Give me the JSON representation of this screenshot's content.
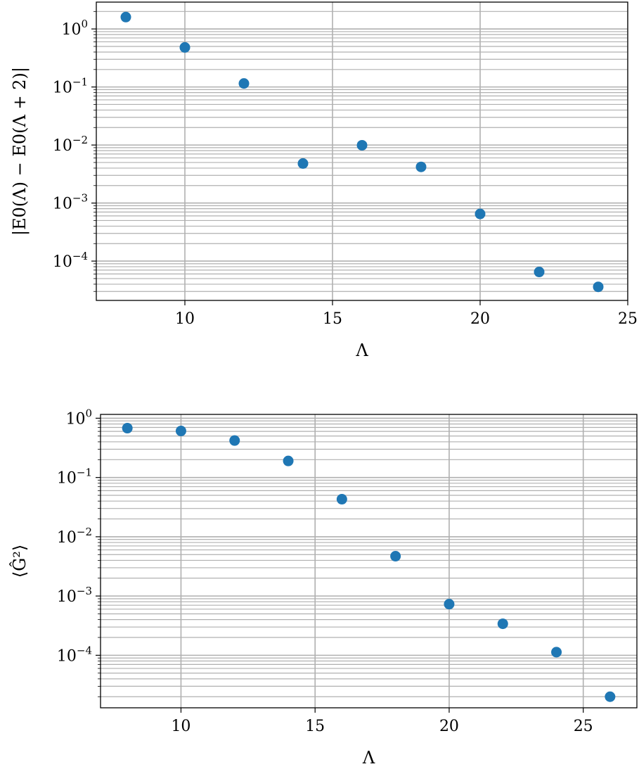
{
  "chart_data": [
    {
      "type": "scatter",
      "xlabel": "Λ",
      "ylabel": "|E0(Λ) − E0(Λ + 2)|",
      "yscale": "log",
      "xlim": [
        7,
        25
      ],
      "ylim": [
        2.1e-05,
        2.9
      ],
      "x_ticks": [
        10,
        15,
        20,
        25
      ],
      "y_ticks": [
        1,
        0.1,
        0.01,
        0.001,
        0.0001
      ],
      "grid": true,
      "marker_color": "#1f77b4",
      "x": [
        8,
        10,
        12,
        14,
        16,
        18,
        20,
        22,
        24
      ],
      "y": [
        1.6,
        0.48,
        0.115,
        0.0048,
        0.0099,
        0.0042,
        0.00065,
        6.5e-05,
        3.6e-05
      ]
    },
    {
      "type": "scatter",
      "xlabel": "Λ",
      "ylabel": "⟨Ĝ²⟩",
      "yscale": "log",
      "xlim": [
        7,
        27
      ],
      "ylim": [
        1.3e-05,
        1.16
      ],
      "x_ticks": [
        10,
        15,
        20,
        25
      ],
      "y_ticks": [
        1,
        0.1,
        0.01,
        0.001,
        0.0001
      ],
      "grid": true,
      "marker_color": "#1f77b4",
      "x": [
        8,
        10,
        12,
        14,
        16,
        18,
        20,
        22,
        24,
        26
      ],
      "y": [
        0.68,
        0.61,
        0.42,
        0.19,
        0.043,
        0.0047,
        0.00073,
        0.00034,
        0.000113,
        2e-05
      ]
    }
  ]
}
